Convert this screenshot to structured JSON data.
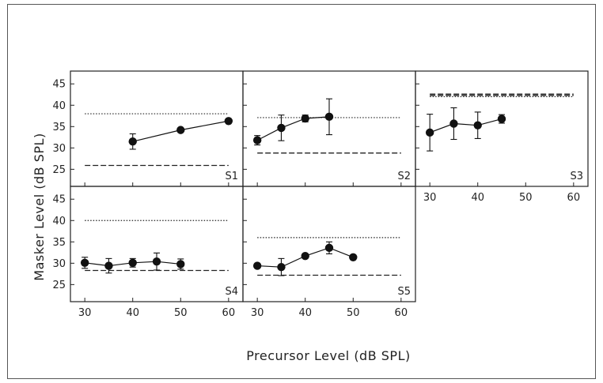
{
  "chart_data": {
    "type": "scatter",
    "xlabel": "Precursor Level (dB SPL)",
    "ylabel": "Masker Level (dB SPL)",
    "xlim": [
      27,
      63
    ],
    "ylim": [
      21,
      48
    ],
    "xticks": [
      30,
      40,
      50,
      60
    ],
    "yticks": [
      25,
      30,
      35,
      40,
      45
    ],
    "grid": false,
    "panels": [
      {
        "label": "S1",
        "points": [
          {
            "x": 40,
            "y": 31.5,
            "err": 1.8
          },
          {
            "x": 50,
            "y": 34.2,
            "err": 0
          },
          {
            "x": 60,
            "y": 36.3,
            "err": 0
          }
        ],
        "dotted_level": 38.0,
        "dashed_levels": [
          25.9
        ]
      },
      {
        "label": "S2",
        "points": [
          {
            "x": 30,
            "y": 31.8,
            "err": 1.1
          },
          {
            "x": 35,
            "y": 34.7,
            "err": 3.0
          },
          {
            "x": 40,
            "y": 36.9,
            "err": 0.8
          },
          {
            "x": 45,
            "y": 37.3,
            "err": 4.2
          }
        ],
        "dotted_level": 37.1,
        "dashed_levels": [
          28.8
        ]
      },
      {
        "label": "S3",
        "points": [
          {
            "x": 30,
            "y": 33.6,
            "err": 4.3
          },
          {
            "x": 35,
            "y": 35.7,
            "err": 3.7
          },
          {
            "x": 40,
            "y": 35.3,
            "err": 3.1
          },
          {
            "x": 45,
            "y": 36.8,
            "err": 1.0
          }
        ],
        "dotted_level": 42.0,
        "dashed_levels": [
          42.3,
          42.6
        ]
      },
      {
        "label": "S4",
        "points": [
          {
            "x": 30,
            "y": 30.1,
            "err": 1.3
          },
          {
            "x": 35,
            "y": 29.4,
            "err": 1.7
          },
          {
            "x": 40,
            "y": 30.1,
            "err": 1.0
          },
          {
            "x": 45,
            "y": 30.4,
            "err": 2.0
          },
          {
            "x": 50,
            "y": 29.8,
            "err": 1.2
          }
        ],
        "dotted_level": 40.0,
        "dashed_levels": [
          28.3
        ]
      },
      {
        "label": "S5",
        "points": [
          {
            "x": 30,
            "y": 29.4,
            "err": 0
          },
          {
            "x": 35,
            "y": 29.1,
            "err": 2.0
          },
          {
            "x": 40,
            "y": 31.7,
            "err": 0
          },
          {
            "x": 45,
            "y": 33.6,
            "err": 1.4
          },
          {
            "x": 50,
            "y": 31.4,
            "err": 0
          }
        ],
        "dotted_level": 36.0,
        "dashed_levels": [
          27.2
        ]
      }
    ]
  }
}
